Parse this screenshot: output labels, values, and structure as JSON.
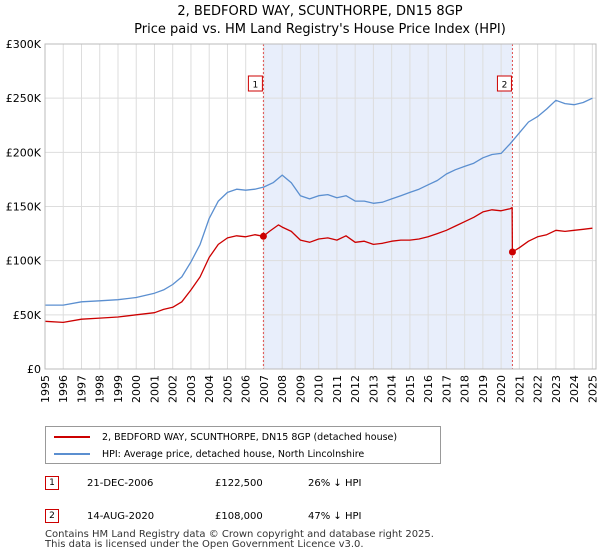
{
  "chart_data": {
    "type": "line",
    "title": "2, BEDFORD WAY, SCUNTHORPE, DN15 8GP",
    "subtitle": "Price paid vs. HM Land Registry's House Price Index (HPI)",
    "xlim": [
      1995,
      2025.2
    ],
    "ylim": [
      0,
      300000
    ],
    "y_ticks": [
      0,
      50000,
      100000,
      150000,
      200000,
      250000,
      300000
    ],
    "y_tick_labels": [
      "£0",
      "£50K",
      "£100K",
      "£150K",
      "£200K",
      "£250K",
      "£300K"
    ],
    "x_ticks": [
      1995,
      1996,
      1997,
      1998,
      1999,
      2000,
      2001,
      2002,
      2003,
      2004,
      2005,
      2006,
      2007,
      2008,
      2009,
      2010,
      2011,
      2012,
      2013,
      2014,
      2015,
      2016,
      2017,
      2018,
      2019,
      2020,
      2021,
      2022,
      2023,
      2024,
      2025
    ],
    "grid": true,
    "shaded_region": [
      2006.97,
      2020.62
    ],
    "series": [
      {
        "name": "2, BEDFORD WAY, SCUNTHORPE, DN15 8GP (detached house)",
        "color": "#cc0000",
        "x": [
          1995,
          1996,
          1997,
          1998,
          1999,
          2000,
          2001,
          2001.5,
          2002,
          2002.5,
          2003,
          2003.5,
          2004,
          2004.5,
          2005,
          2005.5,
          2006,
          2006.5,
          2006.97,
          2007.3,
          2007.8,
          2008,
          2008.5,
          2009,
          2009.5,
          2010,
          2010.5,
          2011,
          2011.5,
          2012,
          2012.5,
          2013,
          2013.5,
          2014,
          2014.5,
          2015,
          2015.5,
          2016,
          2016.5,
          2017,
          2017.5,
          2018,
          2018.5,
          2019,
          2019.5,
          2020,
          2020.5,
          2020.6,
          2020.62,
          2021,
          2021.5,
          2022,
          2022.5,
          2023,
          2023.5,
          2024,
          2024.5,
          2025
        ],
        "y": [
          44000,
          43000,
          46000,
          47000,
          48000,
          50000,
          52000,
          55000,
          57000,
          62000,
          73000,
          85000,
          103000,
          115000,
          121000,
          123000,
          122000,
          124000,
          122500,
          127000,
          133000,
          131000,
          127000,
          119000,
          117000,
          120000,
          121000,
          119000,
          123000,
          117000,
          118000,
          115000,
          116000,
          118000,
          119000,
          119000,
          120000,
          122000,
          125000,
          128000,
          132000,
          136000,
          140000,
          145000,
          147000,
          146000,
          148000,
          149000,
          108000,
          112000,
          118000,
          122000,
          124000,
          128000,
          127000,
          128000,
          129000,
          130000
        ]
      },
      {
        "name": "HPI: Average price, detached house, North Lincolnshire",
        "color": "#5b8fd0",
        "x": [
          1995,
          1996,
          1997,
          1998,
          1999,
          2000,
          2001,
          2001.5,
          2002,
          2002.5,
          2003,
          2003.5,
          2004,
          2004.5,
          2005,
          2005.5,
          2006,
          2006.5,
          2007,
          2007.5,
          2008,
          2008.5,
          2009,
          2009.5,
          2010,
          2010.5,
          2011,
          2011.5,
          2012,
          2012.5,
          2013,
          2013.5,
          2014,
          2014.5,
          2015,
          2015.5,
          2016,
          2016.5,
          2017,
          2017.5,
          2018,
          2018.5,
          2019,
          2019.5,
          2020,
          2020.5,
          2021,
          2021.5,
          2022,
          2022.5,
          2023,
          2023.5,
          2024,
          2024.5,
          2025
        ],
        "y": [
          59000,
          59000,
          62000,
          63000,
          64000,
          66000,
          70000,
          73000,
          78000,
          85000,
          99000,
          115000,
          139000,
          155000,
          163000,
          166000,
          165000,
          166000,
          168000,
          172000,
          179000,
          172000,
          160000,
          157000,
          160000,
          161000,
          158000,
          160000,
          155000,
          155000,
          153000,
          154000,
          157000,
          160000,
          163000,
          166000,
          170000,
          174000,
          180000,
          184000,
          187000,
          190000,
          195000,
          198000,
          199000,
          208000,
          218000,
          228000,
          233000,
          240000,
          248000,
          245000,
          244000,
          246000,
          250000
        ]
      }
    ],
    "markers": [
      {
        "label": "1",
        "x": 2006.97,
        "y": 122500
      },
      {
        "label": "2",
        "x": 2020.62,
        "y": 108000
      }
    ],
    "legend": [
      "2, BEDFORD WAY, SCUNTHORPE, DN15 8GP (detached house)",
      "HPI: Average price, detached house, North Lincolnshire"
    ]
  },
  "sales": [
    {
      "num": "1",
      "date": "21-DEC-2006",
      "price": "£122,500",
      "delta": "26% ↓ HPI"
    },
    {
      "num": "2",
      "date": "14-AUG-2020",
      "price": "£108,000",
      "delta": "47% ↓ HPI"
    }
  ],
  "footer": {
    "line1": "Contains HM Land Registry data © Crown copyright and database right 2025.",
    "line2": "This data is licensed under the Open Government Licence v3.0."
  },
  "colors": {
    "price_line": "#cc0000",
    "hpi_line": "#5b8fd0",
    "shade": "#e8eefb",
    "grid": "#dddddd"
  }
}
